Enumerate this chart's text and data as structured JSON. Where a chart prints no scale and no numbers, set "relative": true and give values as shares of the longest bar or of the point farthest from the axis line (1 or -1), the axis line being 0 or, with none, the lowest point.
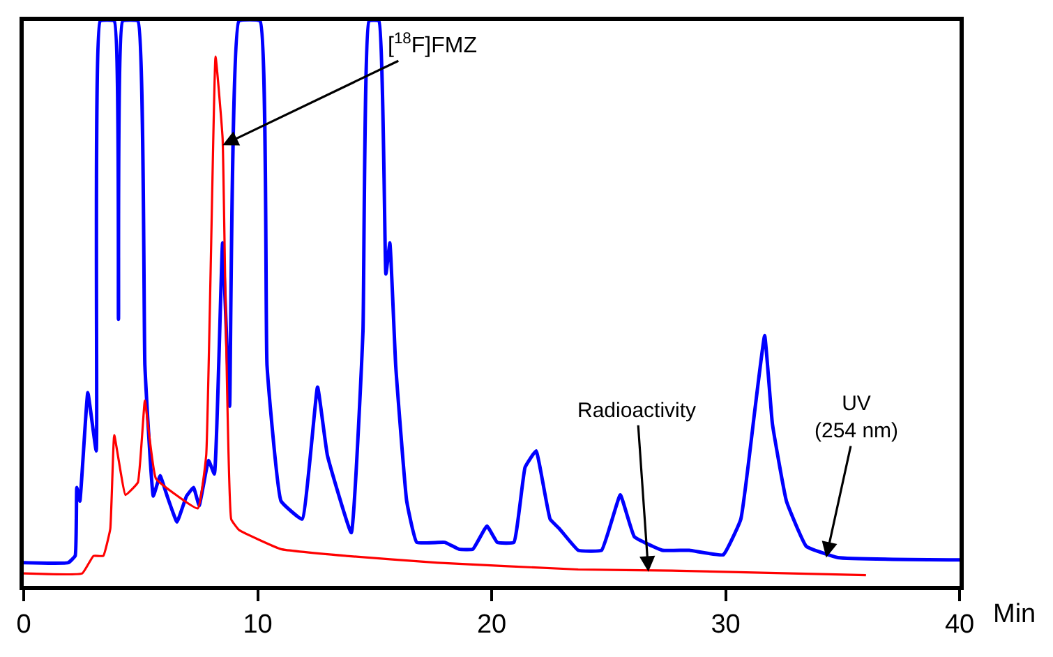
{
  "chart_data": {
    "type": "line",
    "relative": true,
    "xlabel": "Min",
    "xlim": [
      0,
      40
    ],
    "xticks": [
      0,
      10,
      20,
      30,
      40
    ],
    "tick_labels": "x",
    "marker": "none",
    "line_style": "solid",
    "series": [
      {
        "color": "#0000ff",
        "x": [
          0,
          1.9,
          2.2,
          2.27,
          2.4,
          2.74,
          3.1,
          3.27,
          3.87,
          4.05,
          4.23,
          4.88,
          5.18,
          5.54,
          5.83,
          6.13,
          6.55,
          6.96,
          7.26,
          7.5,
          7.9,
          8.15,
          8.5,
          8.8,
          9.2,
          10.1,
          10.4,
          11.0,
          11.9,
          12.56,
          12.98,
          14.0,
          14.5,
          14.76,
          15.18,
          15.48,
          15.65,
          15.9,
          16.37,
          16.8,
          18.0,
          18.6,
          19.2,
          19.8,
          20.24,
          20.95,
          21.43,
          21.9,
          22.5,
          22.9,
          23.7,
          24.7,
          25.5,
          26.1,
          27.3,
          28.45,
          29.9,
          30.65,
          31.25,
          31.67,
          32.0,
          32.6,
          33.45,
          34.8,
          40
        ],
        "values": [
          0.041,
          0.041,
          0.053,
          0.174,
          0.15,
          0.342,
          0.239,
          1,
          1,
          0.472,
          1,
          1,
          0.39,
          0.159,
          0.195,
          0.159,
          0.113,
          0.159,
          0.174,
          0.142,
          0.222,
          0.198,
          0.607,
          0.318,
          1,
          1,
          0.39,
          0.15,
          0.118,
          0.352,
          0.231,
          0.094,
          0.45,
          1,
          1,
          0.552,
          0.607,
          0.39,
          0.15,
          0.077,
          0.077,
          0.065,
          0.065,
          0.106,
          0.077,
          0.077,
          0.21,
          0.239,
          0.118,
          0.101,
          0.063,
          0.063,
          0.161,
          0.087,
          0.063,
          0.063,
          0.055,
          0.118,
          0.311,
          0.443,
          0.287,
          0.15,
          0.07,
          0.05,
          0.046
        ]
      },
      {
        "color": "#ff0000",
        "x": [
          0,
          2.5,
          2.98,
          3.4,
          3.7,
          3.87,
          4.35,
          4.88,
          5.18,
          5.65,
          7.44,
          7.8,
          8.2,
          8.5,
          8.87,
          9.2,
          11.0,
          13.8,
          17.7,
          23.7,
          27.7,
          36.0
        ],
        "values": [
          0.022,
          0.022,
          0.053,
          0.053,
          0.101,
          0.267,
          0.161,
          0.183,
          0.328,
          0.19,
          0.137,
          0.231,
          0.937,
          0.793,
          0.118,
          0.099,
          0.065,
          0.053,
          0.041,
          0.029,
          0.027,
          0.019
        ]
      }
    ],
    "annotations": [
      {
        "text": "[$^{18}$F]FMZ",
        "x": 8.5,
        "y": 0.78
      },
      {
        "text": "Radioactivity",
        "x": 26.7,
        "y": 0.025
      },
      {
        "text": "UV\n(254 nm)",
        "x": 34.3,
        "y": 0.05
      }
    ]
  }
}
